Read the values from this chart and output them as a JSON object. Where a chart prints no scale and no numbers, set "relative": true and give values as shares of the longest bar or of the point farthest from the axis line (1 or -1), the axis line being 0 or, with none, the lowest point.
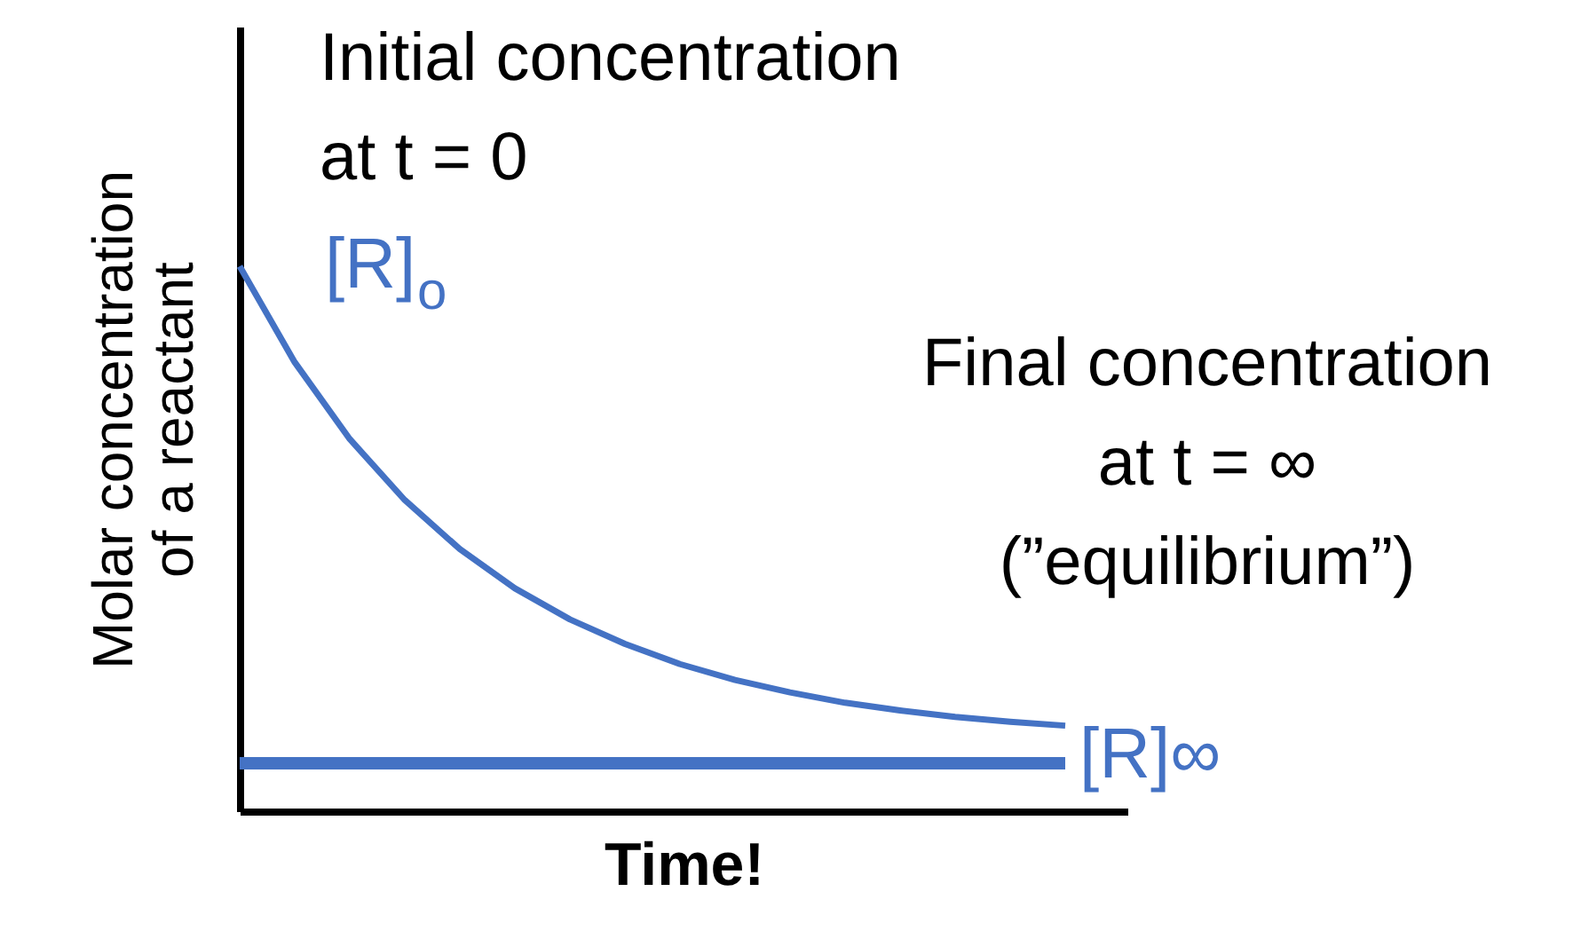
{
  "chart_data": {
    "type": "line",
    "relative": true,
    "xlabel": "Time!",
    "ylabel": "Molar concentration\nof a reactant",
    "categories": [
      null,
      null,
      null,
      null,
      null,
      null,
      null,
      null,
      null,
      null,
      null,
      null,
      null,
      null,
      null,
      null
    ],
    "series": [
      {
        "color": "#4472c4",
        "values": [
          1.0,
          0.824,
          0.683,
          0.571,
          0.481,
          0.409,
          0.352,
          0.307,
          0.27,
          0.241,
          0.218,
          0.199,
          0.185,
          0.173,
          0.164,
          0.157
        ]
      }
    ],
    "ref_lines": [
      {
        "axis": "y",
        "value": 0.088,
        "label": "[R]∞",
        "color": "#4472c4"
      }
    ],
    "annotations": [
      "[R]$_{o}$",
      "Initial concentration\nat t = 0",
      "Final concentration\nat t = ∞\n(”equilibrium”)"
    ],
    "grid": false,
    "marker": "none",
    "line_style": "solid"
  }
}
